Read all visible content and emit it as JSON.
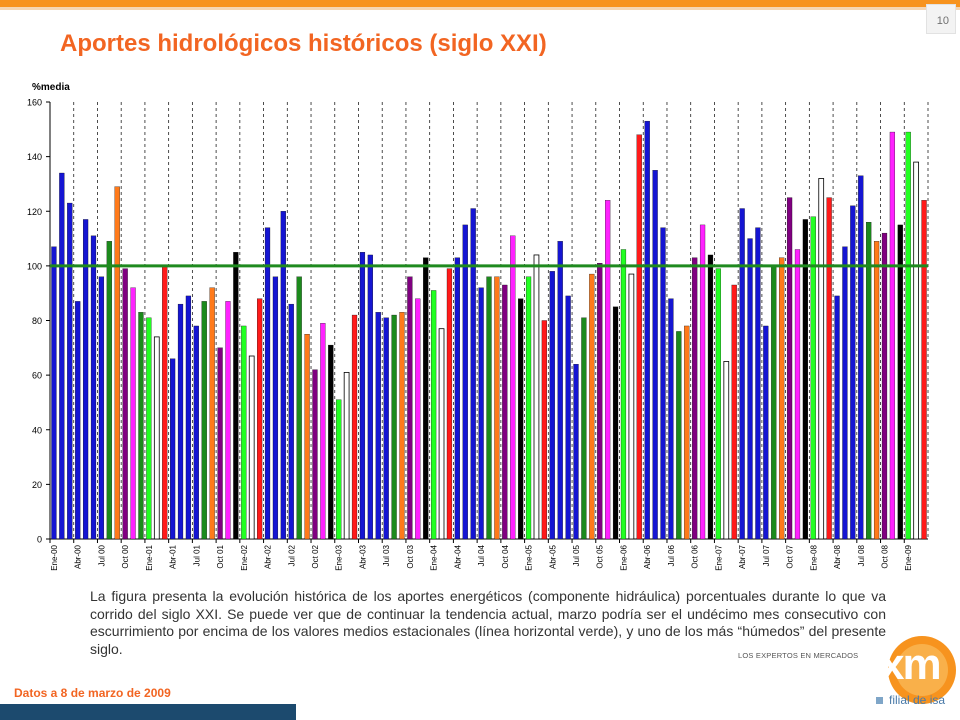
{
  "page": {
    "number": "10",
    "title": "Aportes hidrológicos históricos (siglo XXI)",
    "caption": "La figura presenta la evolución histórica de los aportes energéticos (componente hidráulica) porcentuales durante lo que va corrido del siglo XXI.  Se puede ver que de continuar la tendencia actual, marzo podría ser el undécimo mes consecutivo con escurrimiento por encima de los valores medios estacionales (línea horizontal verde), y uno de los más “húmedos” del presente siglo.",
    "date_note": "Datos a 8 de marzo de 2009",
    "logo": {
      "tagline": "LOS EXPERTOS EN MERCADOS",
      "brand": "xm",
      "subsidiary": "filial de isa"
    }
  },
  "chart_data": {
    "type": "bar",
    "ylabel": "%media",
    "ylim": [
      0,
      160
    ],
    "yticks": [
      0,
      20,
      40,
      60,
      80,
      100,
      120,
      140,
      160
    ],
    "reference_line": {
      "value": 100,
      "color": "#1f8a1f"
    },
    "grid": {
      "vertical_dashed": true,
      "horizontal": false
    },
    "month_colors": [
      "#1515d2",
      "#1515d2",
      "#1515d2",
      "#ff22ff",
      "#1515d2",
      "#1515d2",
      "#1515d2",
      "#1c8a1c",
      "#ff7a1a",
      "#22ff22",
      "#000000",
      "#ffffff",
      "#ff1a1a",
      "#800080"
    ],
    "color_legend_note": "",
    "x_labels": [
      "Ene-00",
      "Abr-00",
      "Jul 00",
      "Oct 00",
      "Ene-01",
      "Abr-01",
      "Jul 01",
      "Oct 01",
      "Ene-02",
      "Abr-02",
      "Jul 02",
      "Oct 02",
      "Ene-03",
      "Abr-03",
      "Jul 03",
      "Oct 03",
      "Ene-04",
      "Abr-04",
      "Jul 04",
      "Oct 04",
      "Ene-05",
      "Abr-05",
      "Jul 05",
      "Oct 05",
      "Ene-06",
      "Abr-06",
      "Jul 06",
      "Oct 06",
      "Ene-07",
      "Abr-07",
      "Jul 07",
      "Oct 07",
      "Ene-08",
      "Abr-08",
      "Jul 08",
      "Oct 08",
      "Ene-09"
    ],
    "bars": [
      {
        "v": 107,
        "c": "#1515d2"
      },
      {
        "v": 134,
        "c": "#1515d2"
      },
      {
        "v": 123,
        "c": "#1515d2"
      },
      {
        "v": 87,
        "c": "#1515d2"
      },
      {
        "v": 117,
        "c": "#1515d2"
      },
      {
        "v": 111,
        "c": "#1515d2"
      },
      {
        "v": 96,
        "c": "#1515d2"
      },
      {
        "v": 109,
        "c": "#1c8a1c"
      },
      {
        "v": 129,
        "c": "#ff7a1a"
      },
      {
        "v": 99,
        "c": "#800080"
      },
      {
        "v": 92,
        "c": "#ff22ff"
      },
      {
        "v": 83,
        "c": "#1c8a1c"
      },
      {
        "v": 81,
        "c": "#22ff22"
      },
      {
        "v": 74,
        "c": "#ffffff"
      },
      {
        "v": 100,
        "c": "#ff1a1a"
      },
      {
        "v": 66,
        "c": "#1515d2"
      },
      {
        "v": 86,
        "c": "#1515d2"
      },
      {
        "v": 89,
        "c": "#1515d2"
      },
      {
        "v": 78,
        "c": "#1515d2"
      },
      {
        "v": 87,
        "c": "#1c8a1c"
      },
      {
        "v": 92,
        "c": "#ff7a1a"
      },
      {
        "v": 70,
        "c": "#800080"
      },
      {
        "v": 87,
        "c": "#ff22ff"
      },
      {
        "v": 105,
        "c": "#000000"
      },
      {
        "v": 78,
        "c": "#22ff22"
      },
      {
        "v": 67,
        "c": "#ffffff"
      },
      {
        "v": 88,
        "c": "#ff1a1a"
      },
      {
        "v": 114,
        "c": "#1515d2"
      },
      {
        "v": 96,
        "c": "#1515d2"
      },
      {
        "v": 120,
        "c": "#1515d2"
      },
      {
        "v": 86,
        "c": "#1515d2"
      },
      {
        "v": 96,
        "c": "#1c8a1c"
      },
      {
        "v": 75,
        "c": "#ff7a1a"
      },
      {
        "v": 62,
        "c": "#800080"
      },
      {
        "v": 79,
        "c": "#ff22ff"
      },
      {
        "v": 71,
        "c": "#000000"
      },
      {
        "v": 51,
        "c": "#22ff22"
      },
      {
        "v": 61,
        "c": "#ffffff"
      },
      {
        "v": 82,
        "c": "#ff1a1a"
      },
      {
        "v": 105,
        "c": "#1515d2"
      },
      {
        "v": 104,
        "c": "#1515d2"
      },
      {
        "v": 83,
        "c": "#1515d2"
      },
      {
        "v": 81,
        "c": "#1515d2"
      },
      {
        "v": 82,
        "c": "#1c8a1c"
      },
      {
        "v": 83,
        "c": "#ff7a1a"
      },
      {
        "v": 96,
        "c": "#800080"
      },
      {
        "v": 88,
        "c": "#ff22ff"
      },
      {
        "v": 103,
        "c": "#000000"
      },
      {
        "v": 91,
        "c": "#22ff22"
      },
      {
        "v": 77,
        "c": "#ffffff"
      },
      {
        "v": 99,
        "c": "#ff1a1a"
      },
      {
        "v": 103,
        "c": "#1515d2"
      },
      {
        "v": 115,
        "c": "#1515d2"
      },
      {
        "v": 121,
        "c": "#1515d2"
      },
      {
        "v": 92,
        "c": "#1515d2"
      },
      {
        "v": 96,
        "c": "#1c8a1c"
      },
      {
        "v": 96,
        "c": "#ff7a1a"
      },
      {
        "v": 93,
        "c": "#800080"
      },
      {
        "v": 111,
        "c": "#ff22ff"
      },
      {
        "v": 88,
        "c": "#000000"
      },
      {
        "v": 96,
        "c": "#22ff22"
      },
      {
        "v": 104,
        "c": "#ffffff"
      },
      {
        "v": 80,
        "c": "#ff1a1a"
      },
      {
        "v": 98,
        "c": "#1515d2"
      },
      {
        "v": 109,
        "c": "#1515d2"
      },
      {
        "v": 89,
        "c": "#1515d2"
      },
      {
        "v": 64,
        "c": "#1515d2"
      },
      {
        "v": 81,
        "c": "#1c8a1c"
      },
      {
        "v": 97,
        "c": "#ff7a1a"
      },
      {
        "v": 101,
        "c": "#800080"
      },
      {
        "v": 124,
        "c": "#ff22ff"
      },
      {
        "v": 85,
        "c": "#000000"
      },
      {
        "v": 106,
        "c": "#22ff22"
      },
      {
        "v": 97,
        "c": "#ffffff"
      },
      {
        "v": 148,
        "c": "#ff1a1a"
      },
      {
        "v": 153,
        "c": "#1515d2"
      },
      {
        "v": 135,
        "c": "#1515d2"
      },
      {
        "v": 114,
        "c": "#1515d2"
      },
      {
        "v": 88,
        "c": "#1515d2"
      },
      {
        "v": 76,
        "c": "#1c8a1c"
      },
      {
        "v": 78,
        "c": "#ff7a1a"
      },
      {
        "v": 103,
        "c": "#800080"
      },
      {
        "v": 115,
        "c": "#ff22ff"
      },
      {
        "v": 104,
        "c": "#000000"
      },
      {
        "v": 99,
        "c": "#22ff22"
      },
      {
        "v": 65,
        "c": "#ffffff"
      },
      {
        "v": 93,
        "c": "#ff1a1a"
      },
      {
        "v": 121,
        "c": "#1515d2"
      },
      {
        "v": 110,
        "c": "#1515d2"
      },
      {
        "v": 114,
        "c": "#1515d2"
      },
      {
        "v": 78,
        "c": "#1515d2"
      },
      {
        "v": 100,
        "c": "#1c8a1c"
      },
      {
        "v": 103,
        "c": "#ff7a1a"
      },
      {
        "v": 125,
        "c": "#800080"
      },
      {
        "v": 106,
        "c": "#ff22ff"
      },
      {
        "v": 117,
        "c": "#000000"
      },
      {
        "v": 118,
        "c": "#22ff22"
      },
      {
        "v": 132,
        "c": "#ffffff"
      },
      {
        "v": 125,
        "c": "#ff1a1a"
      },
      {
        "v": 89,
        "c": "#1515d2"
      },
      {
        "v": 107,
        "c": "#1515d2"
      },
      {
        "v": 122,
        "c": "#1515d2"
      },
      {
        "v": 133,
        "c": "#1515d2"
      },
      {
        "v": 116,
        "c": "#1c8a1c"
      },
      {
        "v": 109,
        "c": "#ff7a1a"
      },
      {
        "v": 112,
        "c": "#800080"
      },
      {
        "v": 149,
        "c": "#ff22ff"
      },
      {
        "v": 115,
        "c": "#000000"
      },
      {
        "v": 149,
        "c": "#22ff22"
      },
      {
        "v": 138,
        "c": "#ffffff"
      },
      {
        "v": 124,
        "c": "#ff1a1a"
      }
    ]
  }
}
